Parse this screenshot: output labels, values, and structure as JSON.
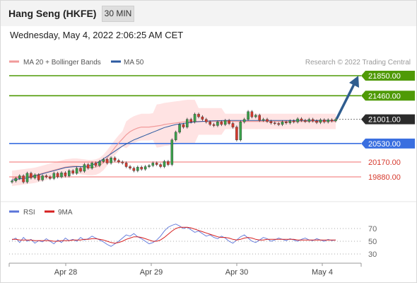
{
  "header": {
    "title": "Hang Seng (HKFE)",
    "timeframe": "30 MIN"
  },
  "datetime": "Wednesday, May 4, 2022 2:06:25 AM CET",
  "legend": {
    "ma20_label": "MA 20 + Bollinger Bands",
    "ma50_label": "MA 50",
    "credit": "Research © 2022 Trading Central"
  },
  "colors": {
    "target": "#4f9a06",
    "pivot": "#3a6fe0",
    "support": "#f26d6d",
    "current": "#2b2b2b",
    "arrow": "#2f5d8f",
    "candle_up": "#3aa04a",
    "candle_down": "#d63a2e",
    "ma20": "#f19a9a",
    "ma50": "#2c5aa0",
    "bollinger_fill": "#ffdada",
    "rsi": "#5b74d9",
    "rsi_ma": "#d62020"
  },
  "chart_data": [
    {
      "type": "candlestick",
      "title": "",
      "x_labels": [
        "Apr 28",
        "Apr 29",
        "Apr 30",
        "May 4"
      ],
      "levels": [
        {
          "label": "21850.00",
          "value": 21850,
          "kind": "target"
        },
        {
          "label": "21460.00",
          "value": 21460,
          "kind": "target"
        },
        {
          "label": "21001.00",
          "value": 21001,
          "kind": "current"
        },
        {
          "label": "20530.00",
          "value": 20530,
          "kind": "pivot"
        },
        {
          "label": "20170.00",
          "value": 20170,
          "kind": "support"
        },
        {
          "label": "19880.00",
          "value": 19880,
          "kind": "support"
        }
      ],
      "close": [
        19800,
        19850,
        19900,
        19780,
        19950,
        19860,
        19920,
        19820,
        19900,
        19880,
        19850,
        19950,
        19880,
        19960,
        19900,
        20000,
        19950,
        20050,
        19990,
        20120,
        20050,
        20150,
        20100,
        20180,
        20220,
        20150,
        20250,
        20200,
        20170,
        20150,
        20080,
        20050,
        20000,
        20070,
        20030,
        20080,
        20100,
        20150,
        20120,
        20080,
        20180,
        20120,
        20600,
        20750,
        20900,
        20850,
        21000,
        20950,
        21100,
        21050,
        21000,
        20950,
        20900,
        20880,
        20950,
        20900,
        20980,
        20920,
        20850,
        20600,
        20950,
        21000,
        21150,
        21050,
        21080,
        20980,
        21000,
        20960,
        20930,
        20920,
        20900,
        20950,
        20930,
        20970,
        20950,
        21010,
        20980,
        20960,
        21000,
        20970,
        20940,
        20990,
        20950,
        20990,
        20970,
        21001
      ],
      "ma20": [
        19850,
        19860,
        19870,
        19880,
        19890,
        19900,
        19910,
        19930,
        19950,
        19970,
        19990,
        20010,
        20030,
        20050,
        20070,
        20080,
        20090,
        20090,
        20080,
        20070,
        20060,
        20060,
        20070,
        20100,
        20160,
        20250,
        20350,
        20450,
        20540,
        20620,
        20700,
        20760,
        20800,
        20830,
        20850,
        20850,
        20850,
        20860,
        20870,
        20880,
        20900,
        20910,
        20920,
        20930,
        20940,
        20950,
        20960,
        20960,
        20960,
        20960,
        20960,
        20960,
        20960,
        20960,
        20960,
        20960,
        20960,
        20960,
        20960,
        20960,
        20960,
        20960,
        20960,
        20960,
        20960,
        20960,
        20960,
        20960,
        20960,
        20960,
        20960,
        20960,
        20960,
        20960,
        20960,
        20960,
        20960,
        20960,
        20960,
        20960,
        20960,
        20960,
        20960,
        20960,
        20960,
        20960
      ],
      "ma50": [
        19820,
        19830,
        19840,
        19850,
        19860,
        19880,
        19900,
        19920,
        19940,
        19960,
        19980,
        20000,
        20020,
        20040,
        20060,
        20070,
        20075,
        20080,
        20080,
        20080,
        20090,
        20110,
        20140,
        20180,
        20230,
        20280,
        20330,
        20380,
        20430,
        20480,
        20520,
        20560,
        20600,
        20630,
        20660,
        20690,
        20720,
        20750,
        20780,
        20810,
        20840,
        20860,
        20880,
        20900,
        20910,
        20920,
        20930,
        20940,
        20950,
        20955,
        20960,
        20965,
        20970,
        20972,
        20974,
        20976,
        20978,
        20980,
        20980,
        20980,
        20980,
        20980,
        20980,
        20980,
        20980,
        20980,
        20980,
        20980,
        20980,
        20980,
        20980,
        20980,
        20980,
        20980,
        20980,
        20980,
        20980,
        20980,
        20980,
        20980,
        20980,
        20980,
        20980,
        20980,
        20980,
        20980
      ]
    },
    {
      "type": "line",
      "title": "",
      "legend": [
        "RSI",
        "9MA"
      ],
      "y_ticks": [
        "70",
        "50",
        "30"
      ],
      "rsi": [
        52,
        55,
        48,
        56,
        50,
        53,
        47,
        51,
        49,
        54,
        50,
        46,
        52,
        48,
        55,
        51,
        53,
        50,
        56,
        52,
        54,
        58,
        55,
        52,
        49,
        45,
        42,
        46,
        50,
        55,
        60,
        58,
        62,
        57,
        54,
        50,
        46,
        48,
        52,
        58,
        66,
        72,
        75,
        77,
        74,
        70,
        72,
        68,
        64,
        66,
        62,
        58,
        60,
        56,
        54,
        58,
        55,
        50,
        47,
        52,
        57,
        60,
        55,
        50,
        48,
        52,
        56,
        54,
        50,
        52,
        55,
        53,
        51,
        54,
        52,
        50,
        53,
        55,
        52,
        51,
        54,
        52,
        50,
        53,
        51,
        52
      ],
      "rsi_ma": [
        53,
        53,
        52,
        52,
        52,
        52,
        51,
        51,
        51,
        51,
        51,
        50,
        50,
        51,
        51,
        51,
        52,
        52,
        52,
        53,
        53,
        54,
        54,
        53,
        52,
        50,
        48,
        47,
        48,
        50,
        53,
        55,
        57,
        57,
        56,
        54,
        52,
        50,
        50,
        52,
        56,
        61,
        66,
        70,
        72,
        72,
        72,
        71,
        69,
        67,
        65,
        63,
        61,
        59,
        57,
        56,
        56,
        55,
        53,
        52,
        53,
        55,
        56,
        55,
        53,
        52,
        52,
        53,
        53,
        53,
        53,
        53,
        53,
        53,
        53,
        52,
        52,
        52,
        52,
        52,
        52,
        52,
        52,
        52,
        52,
        52
      ]
    }
  ]
}
